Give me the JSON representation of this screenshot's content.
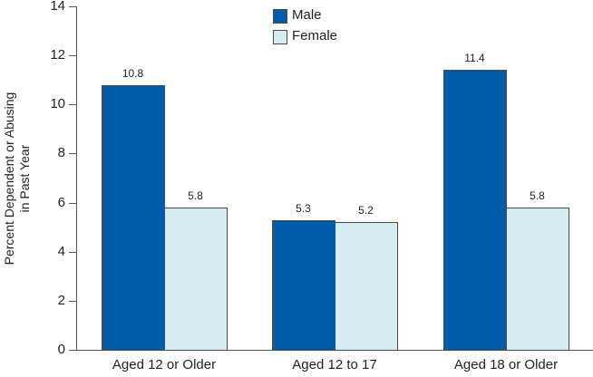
{
  "chart_data": {
    "type": "bar",
    "title": "",
    "xlabel": "",
    "ylabel": "Percent Dependent or Abusing in Past Year",
    "ylabel_lines": [
      "Percent Dependent or Abusing",
      "in Past Year"
    ],
    "ylim": [
      0,
      14
    ],
    "yticks": [
      0,
      2,
      4,
      6,
      8,
      10,
      12,
      14
    ],
    "grid": false,
    "legend_position": "top-center",
    "categories": [
      "Aged 12 or Older",
      "Aged 12 to 17",
      "Aged 18 or Older"
    ],
    "series": [
      {
        "name": "Male",
        "color": "#005ba8",
        "values": [
          10.8,
          5.3,
          11.4
        ],
        "labels": [
          "10.8",
          "5.3",
          "11.4"
        ]
      },
      {
        "name": "Female",
        "color": "#d6ecf3",
        "values": [
          5.8,
          5.2,
          5.8
        ],
        "labels": [
          "5.8",
          "5.2",
          "5.8"
        ]
      }
    ]
  }
}
